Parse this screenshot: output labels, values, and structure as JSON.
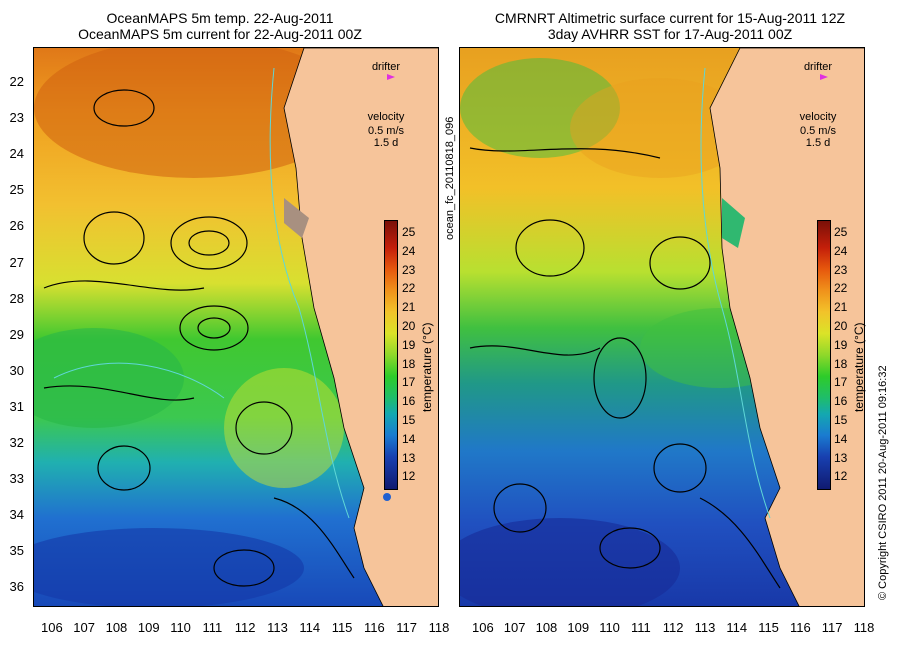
{
  "left_panel": {
    "title_line1": "OceanMAPS 5m temp. 22-Aug-2011",
    "title_line2": "OceanMAPS 5m current for 22-Aug-2011 00Z"
  },
  "right_panel": {
    "title_line1": "CMRNRT Altimetric surface current for 15-Aug-2011 12Z",
    "title_line2": "3day AVHRR SST for 17-Aug-2011 00Z"
  },
  "legend": {
    "drifter_label": "drifter",
    "velocity_label": "velocity",
    "velocity_scale": "0.5 m/s",
    "velocity_duration": "1.5 d"
  },
  "colorbar": {
    "label": "temperature (°C)",
    "ticks": [
      "25",
      "24",
      "23",
      "22",
      "21",
      "20",
      "19",
      "18",
      "17",
      "16",
      "15",
      "14",
      "13",
      "12"
    ]
  },
  "axes": {
    "x_ticks": [
      "106",
      "107",
      "108",
      "109",
      "110",
      "111",
      "112",
      "113",
      "114",
      "115",
      "116",
      "117",
      "118"
    ],
    "y_ticks": [
      "22",
      "23",
      "24",
      "25",
      "26",
      "27",
      "28",
      "29",
      "30",
      "31",
      "32",
      "33",
      "34",
      "35",
      "36"
    ]
  },
  "side_text": {
    "product_id": "ocean_fc_20110818_096",
    "copyright": "© Copyright CSIRO 2011  20-Aug-2011 09:16:32"
  },
  "colors": {
    "land": "#f6c49a",
    "coast_line": "#5fd7d7",
    "drifter": "#e030e0"
  }
}
